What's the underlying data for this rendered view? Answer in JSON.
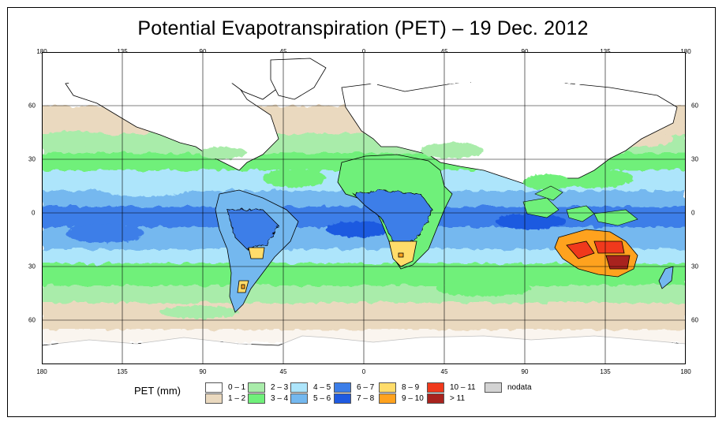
{
  "title": "Potential Evapotranspiration (PET) – 19 Dec. 2012",
  "axes": {
    "lon_labels": [
      "180",
      "135",
      "90",
      "45",
      "0",
      "45",
      "90",
      "135",
      "180"
    ],
    "lat_labels": [
      "60",
      "30",
      "0",
      "30",
      "60"
    ]
  },
  "legend": {
    "title": "PET (mm)",
    "items": [
      {
        "label": "0 – 1",
        "color": "#ffffff"
      },
      {
        "label": "1 – 2",
        "color": "#ead9bf"
      },
      {
        "label": "2 – 3",
        "color": "#a9ecaa"
      },
      {
        "label": "3 – 4",
        "color": "#6ff07a"
      },
      {
        "label": "4 – 5",
        "color": "#ade5fb"
      },
      {
        "label": "5 – 6",
        "color": "#74b8ef"
      },
      {
        "label": "6 – 7",
        "color": "#3c7ee8"
      },
      {
        "label": "7 – 8",
        "color": "#1f5ae0"
      },
      {
        "label": "8 – 9",
        "color": "#ffdc6a"
      },
      {
        "label": "9 – 10",
        "color": "#ffa21e"
      },
      {
        "label": "10 – 11",
        "color": "#f0391c"
      },
      {
        "label": "> 11",
        "color": "#a8231e"
      },
      {
        "label": "nodata",
        "color": "#d3d3d3"
      }
    ]
  }
}
